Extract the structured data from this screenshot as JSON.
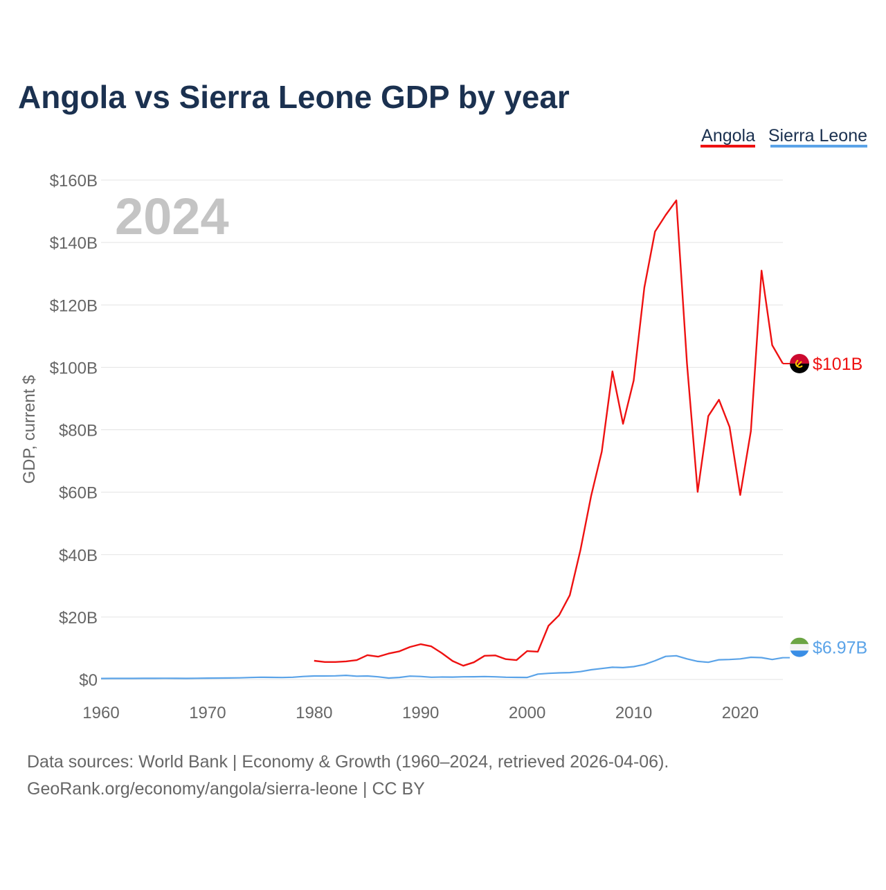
{
  "chart_data": {
    "type": "line",
    "title": "Angola vs Sierra Leone GDP by year",
    "year_label": "2024",
    "ylabel": "GDP, current $",
    "xlabel": "",
    "xlim": [
      1960,
      2024
    ],
    "ylim": [
      0,
      160
    ],
    "x_ticks": [
      "1960",
      "1970",
      "1980",
      "1990",
      "2000",
      "2010",
      "2020"
    ],
    "y_ticks": [
      "$0",
      "$20B",
      "$40B",
      "$60B",
      "$80B",
      "$100B",
      "$120B",
      "$140B",
      "$160B"
    ],
    "legend": [
      "Angola",
      "Sierra Leone"
    ],
    "series": [
      {
        "name": "Angola",
        "color": "#ee1111",
        "flag": "angola-flag",
        "end_label": "$101B",
        "start_year": 1980,
        "values": [
          6.0,
          5.6,
          5.6,
          5.8,
          6.2,
          7.8,
          7.3,
          8.3,
          9.0,
          10.4,
          11.3,
          10.6,
          8.4,
          5.9,
          4.4,
          5.5,
          7.6,
          7.7,
          6.5,
          6.2,
          9.1,
          8.9,
          17.2,
          20.6,
          27.0,
          41.5,
          58.8,
          73.0,
          98.7,
          81.9,
          95.8,
          125.6,
          143.5,
          148.8,
          153.5,
          101.2,
          60.1,
          84.4,
          89.6,
          80.9,
          59.1,
          79.6,
          131.0,
          107.1,
          101.2
        ]
      },
      {
        "name": "Sierra Leone",
        "color": "#5aa3e8",
        "flag": "sierra-leone-flag",
        "end_label": "$6.97B",
        "start_year": 1960,
        "values": [
          0.32,
          0.33,
          0.34,
          0.34,
          0.36,
          0.35,
          0.37,
          0.35,
          0.34,
          0.38,
          0.42,
          0.45,
          0.47,
          0.52,
          0.62,
          0.7,
          0.67,
          0.62,
          0.7,
          0.95,
          1.1,
          1.12,
          1.15,
          1.3,
          1.05,
          1.1,
          0.85,
          0.45,
          0.65,
          1.07,
          0.95,
          0.72,
          0.78,
          0.75,
          0.84,
          0.87,
          0.94,
          0.85,
          0.7,
          0.67,
          0.64,
          1.7,
          1.95,
          2.1,
          2.2,
          2.5,
          3.1,
          3.5,
          3.9,
          3.8,
          4.1,
          4.8,
          6.0,
          7.4,
          7.6,
          6.6,
          5.8,
          5.5,
          6.3,
          6.4,
          6.6,
          7.1,
          7.0,
          6.4,
          6.97
        ]
      }
    ]
  },
  "footer": {
    "line1": "Data sources: World Bank | Economy & Growth (1960–2024, retrieved 2026-04-06).",
    "line2": "GeoRank.org/economy/angola/sierra-leone | CC BY"
  }
}
